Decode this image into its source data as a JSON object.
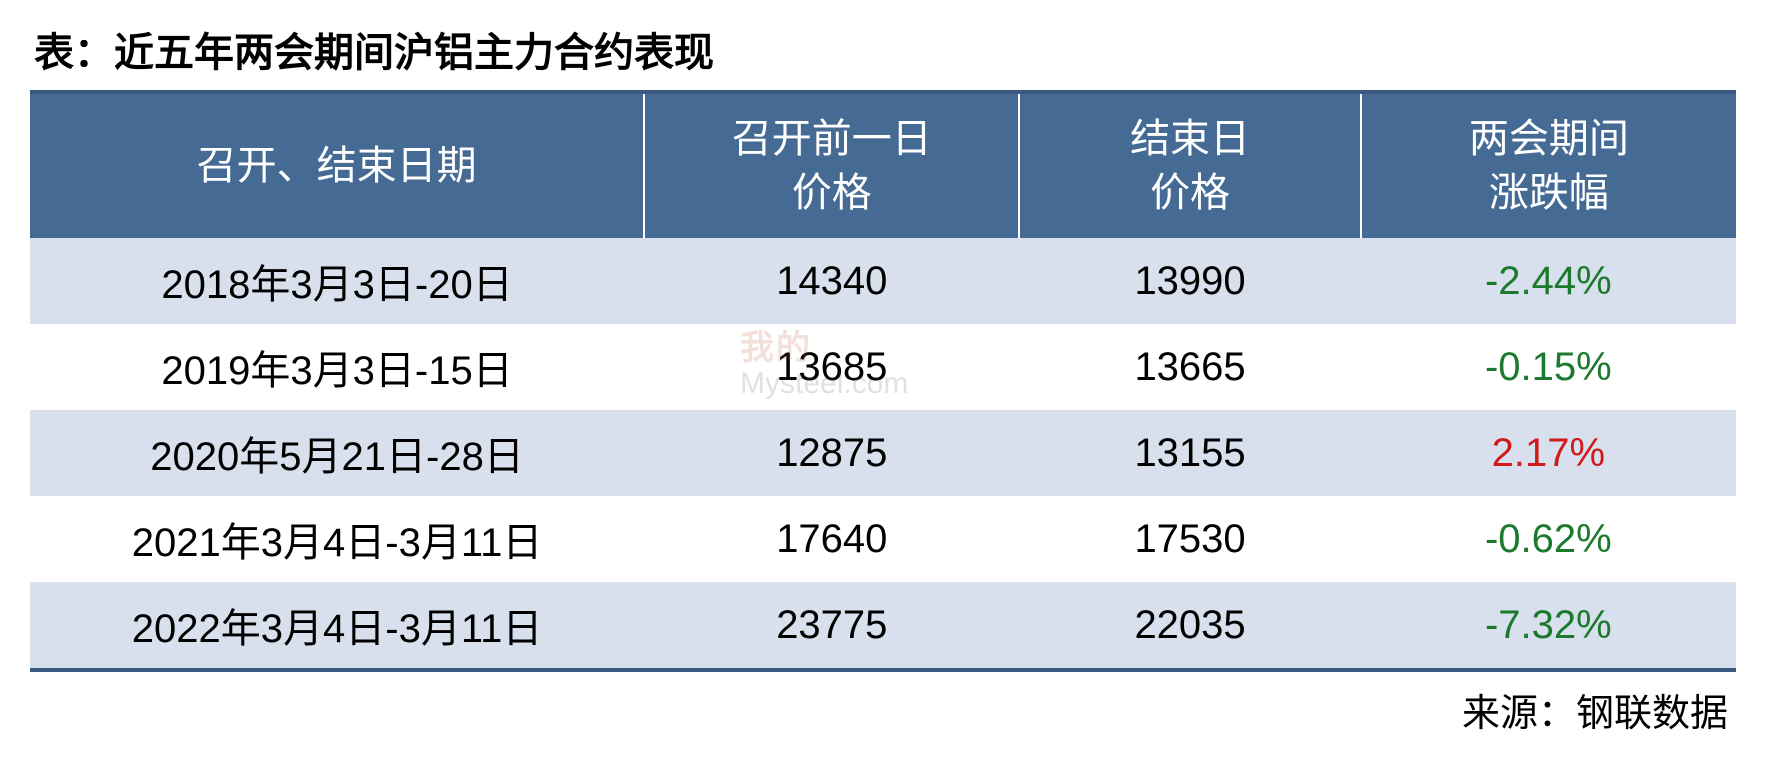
{
  "title": "表：近五年两会期间沪铝主力合约表现",
  "source": "来源：钢联数据",
  "watermark": {
    "line1": "我的",
    "line2": "Mysteel.com"
  },
  "table": {
    "type": "table",
    "header_bg": "#456a93",
    "header_text_color": "#ffffff",
    "row_odd_bg": "#d7e0ec",
    "row_even_bg": "#ffffff",
    "border_color": "#3a5a81",
    "neg_color": "#1b7a2d",
    "pos_color": "#d11a1a",
    "header_fontsize": 40,
    "cell_fontsize": 40,
    "columns": [
      {
        "label_line1": "召开、结束日期",
        "label_line2": "",
        "width": "36%"
      },
      {
        "label_line1": "召开前一日",
        "label_line2": "价格",
        "width": "22%"
      },
      {
        "label_line1": "结束日",
        "label_line2": "价格",
        "width": "20%"
      },
      {
        "label_line1": "两会期间",
        "label_line2": "涨跌幅",
        "width": "22%"
      }
    ],
    "rows": [
      {
        "date": "2018年3月3日-20日",
        "p1": "14340",
        "p2": "13990",
        "chg": "-2.44%",
        "dir": "neg"
      },
      {
        "date": "2019年3月3日-15日",
        "p1": "13685",
        "p2": "13665",
        "chg": "-0.15%",
        "dir": "neg"
      },
      {
        "date": "2020年5月21日-28日",
        "p1": "12875",
        "p2": "13155",
        "chg": "2.17%",
        "dir": "pos"
      },
      {
        "date": "2021年3月4日-3月11日",
        "p1": "17640",
        "p2": "17530",
        "chg": "-0.62%",
        "dir": "neg"
      },
      {
        "date": "2022年3月4日-3月11日",
        "p1": "23775",
        "p2": "22035",
        "chg": "-7.32%",
        "dir": "neg"
      }
    ]
  }
}
